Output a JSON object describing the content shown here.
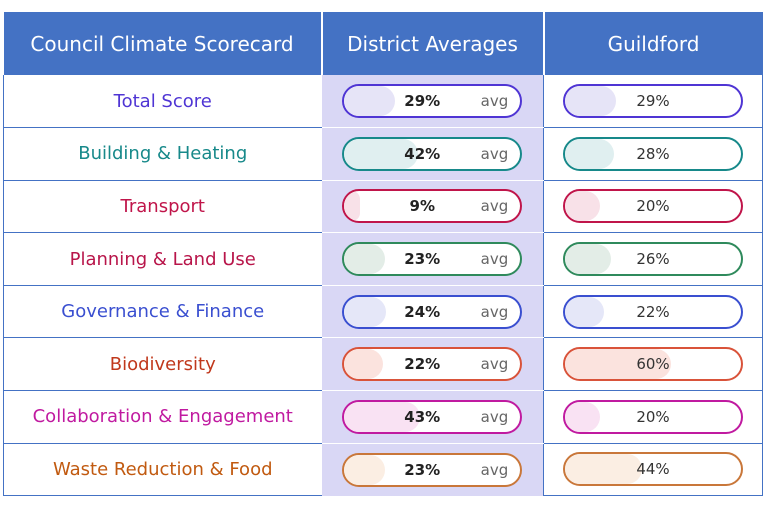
{
  "header": {
    "category": "Council Climate Scorecard",
    "district": "District Averages",
    "council": "Guildford"
  },
  "avg_tag": "avg",
  "rows": [
    {
      "label": "Total Score",
      "color": "#4f35d4",
      "fill": "#e6e4f7",
      "district": "29%",
      "council": "29%",
      "district_value": 29,
      "council_value": 29
    },
    {
      "label": "Building & Heating",
      "color": "#17898a",
      "fill": "#e0eff0",
      "district": "42%",
      "council": "28%",
      "district_value": 42,
      "council_value": 28
    },
    {
      "label": "Transport",
      "color": "#c0154a",
      "fill": "#f8e1e8",
      "district": "9%",
      "council": "20%",
      "district_value": 9,
      "council_value": 20
    },
    {
      "label": "Planning & Land Use",
      "color": "#b8154a",
      "fill": "#e3ede7",
      "border": "#2f8a5c",
      "district": "23%",
      "council": "26%",
      "district_value": 23,
      "council_value": 26
    },
    {
      "label": "Governance & Finance",
      "color": "#3a4fd0",
      "fill": "#e5e7f8",
      "district": "24%",
      "council": "22%",
      "district_value": 24,
      "council_value": 22
    },
    {
      "label": "Biodiversity",
      "color": "#c0381c",
      "fill": "#fbe3de",
      "border": "#d9533a",
      "district": "22%",
      "council": "60%",
      "district_value": 22,
      "council_value": 60
    },
    {
      "label": "Collaboration & Engagement",
      "color": "#c01aa0",
      "fill": "#f9e2f3",
      "district": "43%",
      "council": "20%",
      "district_value": 43,
      "council_value": 20
    },
    {
      "label": "Waste Reduction & Food",
      "color": "#c15a10",
      "fill": "#fbeee3",
      "border": "#c9773a",
      "district": "23%",
      "council": "44%",
      "district_value": 23,
      "council_value": 44
    }
  ]
}
